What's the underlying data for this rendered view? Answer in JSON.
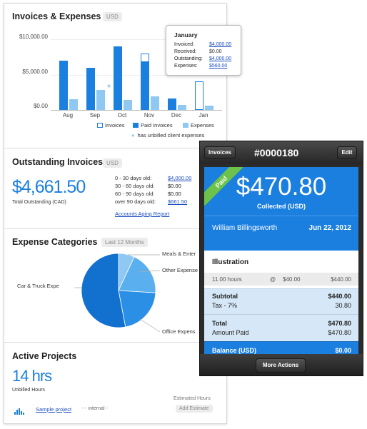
{
  "invoices_expenses": {
    "title": "Invoices & Expenses",
    "currency_badge": "USD",
    "y_ticks": [
      "$10,000.00",
      "$5,000.00",
      "$0.00"
    ],
    "legend": {
      "invoices": "Invoices",
      "paid_invoices": "Paid Invoices",
      "expenses": "Expenses",
      "unbilled": "has unbilled client expenses"
    },
    "tooltip": {
      "month": "January",
      "rows": [
        {
          "label": "Invoiced:",
          "value": "$4,000.00"
        },
        {
          "label": "Received:",
          "value": "$0.00"
        },
        {
          "label": "Outstanding:",
          "value": "$4,000.00"
        },
        {
          "label": "Expenses:",
          "value": "$560.00"
        }
      ]
    },
    "chart_data": {
      "type": "bar",
      "categories": [
        "Aug",
        "Sep",
        "Oct",
        "Nov",
        "Dec",
        "Jan"
      ],
      "series": [
        {
          "name": "Invoices",
          "values": [
            7000,
            6000,
            9000,
            8000,
            1600,
            4000
          ]
        },
        {
          "name": "Paid Invoices",
          "values": [
            7000,
            6000,
            9000,
            6800,
            1600,
            0
          ]
        },
        {
          "name": "Expenses",
          "values": [
            1500,
            2800,
            1400,
            1900,
            700,
            560
          ]
        }
      ],
      "unbilled_markers": [
        "Sep"
      ],
      "ylim": [
        0,
        10000
      ],
      "colors": {
        "paid": "#1b7fe0",
        "expenses": "#8fc8f2",
        "invoices_outline": "#1b7fe0"
      }
    }
  },
  "outstanding": {
    "title": "Outstanding Invoices",
    "currency_badge": "USD",
    "total": "$4,661.50",
    "total_label": "Total Outstanding (CAD)",
    "aging": [
      {
        "label": "0 - 30 days old:",
        "value": "$4,000.00",
        "link": true
      },
      {
        "label": "30 - 60 days old:",
        "value": "$0.00",
        "link": false
      },
      {
        "label": "60 - 90 days old:",
        "value": "$0.00",
        "link": false
      },
      {
        "label": "over 90 days old:",
        "value": "$661.50",
        "link": true
      }
    ],
    "report_link": "Accounts Aging Report"
  },
  "expense_categories": {
    "title": "Expense Categories",
    "badge": "Last 12 Months",
    "chart_data": {
      "type": "pie",
      "labels": [
        "Meals & Enter",
        "Other Expense",
        "Office Expens",
        "Car & Truck Expe"
      ],
      "values": [
        7,
        19,
        21,
        53
      ],
      "colors": [
        "#8fc8f2",
        "#5ab0ee",
        "#2b8fe6",
        "#1270cf"
      ]
    }
  },
  "active_projects": {
    "title": "Active Projects",
    "hours": "14 hrs",
    "hours_label": "Unbilled Hours",
    "estimated_hours_label": "Estimated Hours",
    "project": {
      "name": "Sample project",
      "meta": "- - internal -",
      "action": "Add Estimate"
    }
  },
  "mobile": {
    "back_label": "Invoices",
    "invoice_number": "#0000180",
    "edit_label": "Edit",
    "ribbon": "Paid",
    "amount": "$470.80",
    "collected": "Collected (USD)",
    "client": "William Billingsworth",
    "date": "Jun 22, 2012",
    "item": {
      "title": "Illustration",
      "hours": "11.00 hours",
      "at": "@",
      "rate": "$40.00",
      "line_total": "$440.00"
    },
    "subtotal_label": "Subtotal",
    "subtotal_value": "$440.00",
    "tax_label": "Tax - 7%",
    "tax_value": "30.80",
    "total_label": "Total",
    "total_value": "$470.80",
    "amount_paid_label": "Amount Paid",
    "amount_paid_value": "$470.80",
    "balance_label": "Balance (USD)",
    "balance_value": "$0.00",
    "more_actions": "More Actions"
  }
}
